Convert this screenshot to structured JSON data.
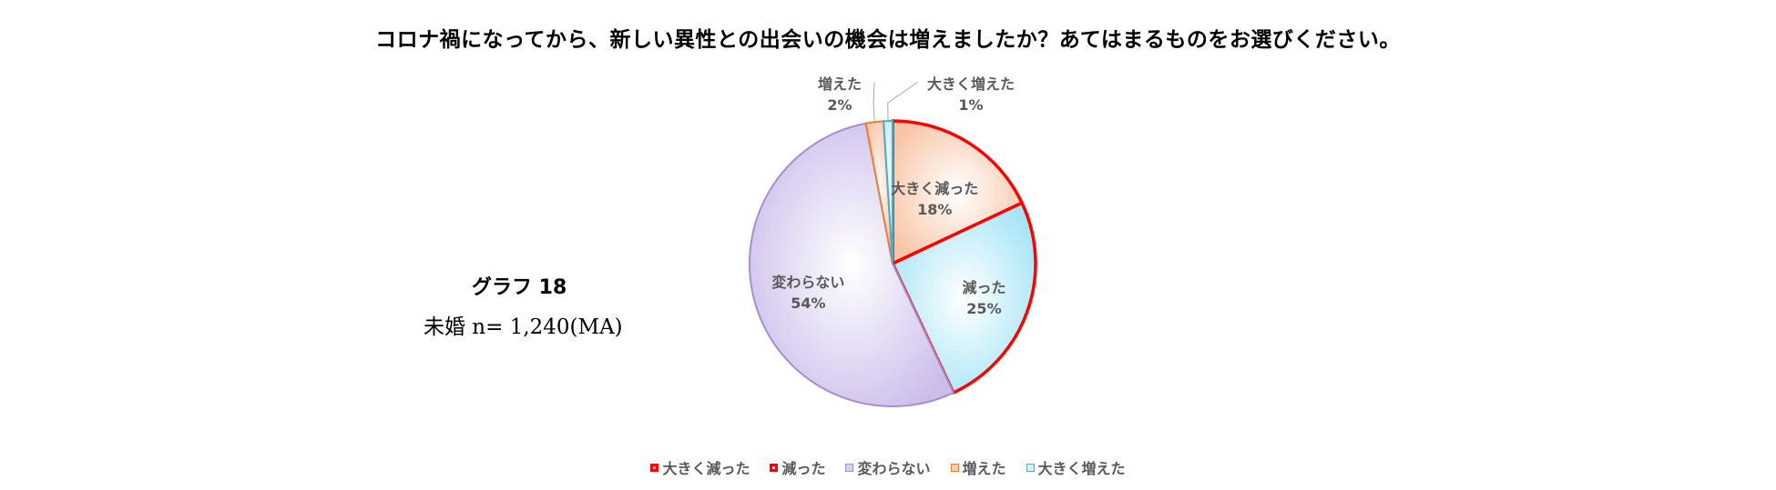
{
  "chart_data": {
    "type": "pie",
    "title": "コロナ禍になってから、新しい異性との出会いの機会は増えましたか？あてはまるものをお選びください。",
    "graph_label": "グラフ 18",
    "sample_label": "未婚 n= 1,240(MA)",
    "slices": [
      {
        "label": "大きく減った",
        "value": 18,
        "value_label": "18%",
        "fill": "#FAD3BC",
        "stroke": "#FF0000"
      },
      {
        "label": "減った",
        "value": 25,
        "value_label": "25%",
        "fill": "#B8EBF8",
        "stroke": "#FF0000"
      },
      {
        "label": "変わらない",
        "value": 54,
        "value_label": "54%",
        "fill": "#DAD0F0",
        "stroke": "#A78FCB"
      },
      {
        "label": "増えた",
        "value": 2,
        "value_label": "2%",
        "fill": "#FAD3BC",
        "stroke": "#ED7D31"
      },
      {
        "label": "大きく増えた",
        "value": 1,
        "value_label": "1%",
        "fill": "#D6F0FA",
        "stroke": "#4BACC6"
      }
    ],
    "legend_placement": "bottom"
  }
}
